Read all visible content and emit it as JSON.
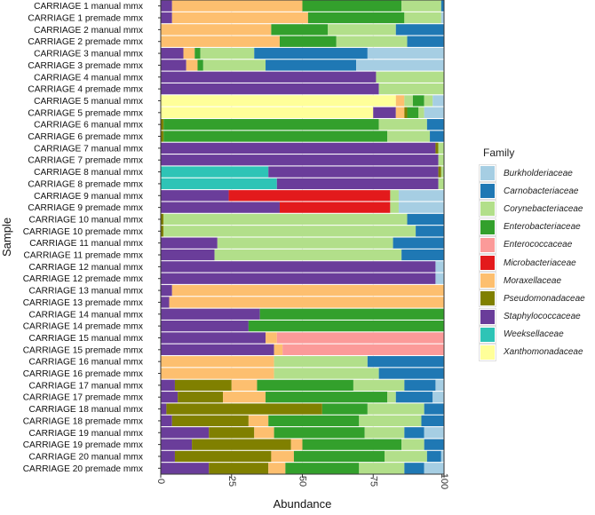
{
  "chart_data": {
    "type": "bar",
    "orientation": "horizontal",
    "stacked": true,
    "xlabel": "Abundance",
    "ylabel": "Sample",
    "xlim": [
      0,
      100
    ],
    "xticks": [
      "0",
      "25",
      "50",
      "75",
      "100"
    ],
    "legend_title": "Family",
    "legend_position": "right",
    "families": [
      "Burkholderiaceae",
      "Carnobacteriaceae",
      "Corynebacteriaceae",
      "Enterobacteriaceae",
      "Enterococcaceae",
      "Microbacteriaceae",
      "Moraxellaceae",
      "Pseudomonadaceae",
      "Staphylococcaceae",
      "Weeksellaceae",
      "Xanthomonadaceae"
    ],
    "colors": {
      "Burkholderiaceae": "#a6cee3",
      "Carnobacteriaceae": "#1f78b4",
      "Corynebacteriaceae": "#b2df8a",
      "Enterobacteriaceae": "#33a02c",
      "Enterococcaceae": "#fb9a99",
      "Microbacteriaceae": "#e31a1c",
      "Moraxellaceae": "#fdbf6f",
      "Pseudomonadaceae": "#808000",
      "Staphylococcaceae": "#6a3d9a",
      "Weeksellaceae": "#2ec4b6",
      "Xanthomonadaceae": "#ffff99"
    },
    "samples": [
      {
        "label": "CARRIAGE 1 manual mmx",
        "segments": [
          [
            "Staphylococcaceae",
            4
          ],
          [
            "Moraxellaceae",
            46
          ],
          [
            "Enterobacteriaceae",
            35
          ],
          [
            "Corynebacteriaceae",
            14
          ],
          [
            "Carnobacteriaceae",
            1
          ]
        ]
      },
      {
        "label": "CARRIAGE 1 premade mmx",
        "segments": [
          [
            "Staphylococcaceae",
            4
          ],
          [
            "Moraxellaceae",
            48
          ],
          [
            "Enterobacteriaceae",
            34
          ],
          [
            "Corynebacteriaceae",
            13
          ],
          [
            "Burkholderiaceae",
            1
          ]
        ]
      },
      {
        "label": "CARRIAGE 2 manual mmx",
        "segments": [
          [
            "Moraxellaceae",
            39
          ],
          [
            "Enterobacteriaceae",
            20
          ],
          [
            "Corynebacteriaceae",
            24
          ],
          [
            "Carnobacteriaceae",
            17
          ]
        ]
      },
      {
        "label": "CARRIAGE 2 premade mmx",
        "segments": [
          [
            "Moraxellaceae",
            42
          ],
          [
            "Enterobacteriaceae",
            20
          ],
          [
            "Corynebacteriaceae",
            25
          ],
          [
            "Carnobacteriaceae",
            13
          ]
        ]
      },
      {
        "label": "CARRIAGE 3 manual mmx",
        "segments": [
          [
            "Staphylococcaceae",
            8
          ],
          [
            "Moraxellaceae",
            4
          ],
          [
            "Enterobacteriaceae",
            2
          ],
          [
            "Corynebacteriaceae",
            19
          ],
          [
            "Carnobacteriaceae",
            40
          ],
          [
            "Burkholderiaceae",
            27
          ]
        ]
      },
      {
        "label": "CARRIAGE 3 premade mmx",
        "segments": [
          [
            "Staphylococcaceae",
            9
          ],
          [
            "Moraxellaceae",
            4
          ],
          [
            "Enterobacteriaceae",
            2
          ],
          [
            "Corynebacteriaceae",
            22
          ],
          [
            "Carnobacteriaceae",
            32
          ],
          [
            "Burkholderiaceae",
            31
          ]
        ]
      },
      {
        "label": "CARRIAGE 4 manual mmx",
        "segments": [
          [
            "Staphylococcaceae",
            76
          ],
          [
            "Corynebacteriaceae",
            24
          ]
        ]
      },
      {
        "label": "CARRIAGE 4 premade mmx",
        "segments": [
          [
            "Staphylococcaceae",
            77
          ],
          [
            "Corynebacteriaceae",
            23
          ]
        ]
      },
      {
        "label": "CARRIAGE 5 manual mmx",
        "segments": [
          [
            "Xanthomonadaceae",
            83
          ],
          [
            "Moraxellaceae",
            3
          ],
          [
            "Corynebacteriaceae",
            3
          ],
          [
            "Enterobacteriaceae",
            4
          ],
          [
            "Corynebacteriaceae",
            3
          ],
          [
            "Burkholderiaceae",
            4
          ]
        ]
      },
      {
        "label": "CARRIAGE 5 premade mmx",
        "segments": [
          [
            "Xanthomonadaceae",
            75
          ],
          [
            "Staphylococcaceae",
            8
          ],
          [
            "Moraxellaceae",
            3
          ],
          [
            "Pseudomonadaceae",
            1
          ],
          [
            "Enterobacteriaceae",
            4
          ],
          [
            "Corynebacteriaceae",
            2
          ],
          [
            "Burkholderiaceae",
            7
          ]
        ]
      },
      {
        "label": "CARRIAGE 6 manual mmx",
        "segments": [
          [
            "Pseudomonadaceae",
            1
          ],
          [
            "Enterobacteriaceae",
            76
          ],
          [
            "Corynebacteriaceae",
            17
          ],
          [
            "Carnobacteriaceae",
            6
          ]
        ]
      },
      {
        "label": "CARRIAGE 6 premade mmx",
        "segments": [
          [
            "Pseudomonadaceae",
            1
          ],
          [
            "Enterobacteriaceae",
            79
          ],
          [
            "Corynebacteriaceae",
            15
          ],
          [
            "Carnobacteriaceae",
            5
          ]
        ]
      },
      {
        "label": "CARRIAGE 7 manual mmx",
        "segments": [
          [
            "Staphylococcaceae",
            97
          ],
          [
            "Pseudomonadaceae",
            1
          ],
          [
            "Corynebacteriaceae",
            2
          ]
        ]
      },
      {
        "label": "CARRIAGE 7 premade mmx",
        "segments": [
          [
            "Staphylococcaceae",
            98
          ],
          [
            "Corynebacteriaceae",
            2
          ]
        ]
      },
      {
        "label": "CARRIAGE 8 manual mmx",
        "segments": [
          [
            "Weeksellaceae",
            38
          ],
          [
            "Staphylococcaceae",
            60
          ],
          [
            "Pseudomonadaceae",
            1
          ],
          [
            "Corynebacteriaceae",
            1
          ]
        ]
      },
      {
        "label": "CARRIAGE 8 premade mmx",
        "segments": [
          [
            "Weeksellaceae",
            41
          ],
          [
            "Staphylococcaceae",
            57
          ],
          [
            "Corynebacteriaceae",
            2
          ]
        ]
      },
      {
        "label": "CARRIAGE 9 manual mmx",
        "segments": [
          [
            "Staphylococcaceae",
            24
          ],
          [
            "Microbacteriaceae",
            57
          ],
          [
            "Corynebacteriaceae",
            3
          ],
          [
            "Burkholderiaceae",
            16
          ]
        ]
      },
      {
        "label": "CARRIAGE 9 premade mmx",
        "segments": [
          [
            "Staphylococcaceae",
            42
          ],
          [
            "Microbacteriaceae",
            39
          ],
          [
            "Corynebacteriaceae",
            3
          ],
          [
            "Burkholderiaceae",
            16
          ]
        ]
      },
      {
        "label": "CARRIAGE 10 manual mmx",
        "segments": [
          [
            "Pseudomonadaceae",
            1
          ],
          [
            "Corynebacteriaceae",
            86
          ],
          [
            "Carnobacteriaceae",
            13
          ]
        ]
      },
      {
        "label": "CARRIAGE 10 premade mmx",
        "segments": [
          [
            "Pseudomonadaceae",
            1
          ],
          [
            "Corynebacteriaceae",
            89
          ],
          [
            "Carnobacteriaceae",
            10
          ]
        ]
      },
      {
        "label": "CARRIAGE 11 manual mmx",
        "segments": [
          [
            "Staphylococcaceae",
            20
          ],
          [
            "Corynebacteriaceae",
            62
          ],
          [
            "Carnobacteriaceae",
            18
          ]
        ]
      },
      {
        "label": "CARRIAGE 11 premade mmx",
        "segments": [
          [
            "Staphylococcaceae",
            19
          ],
          [
            "Corynebacteriaceae",
            66
          ],
          [
            "Carnobacteriaceae",
            15
          ]
        ]
      },
      {
        "label": "CARRIAGE 12 manual mmx",
        "segments": [
          [
            "Staphylococcaceae",
            97
          ],
          [
            "Burkholderiaceae",
            3
          ]
        ]
      },
      {
        "label": "CARRIAGE 12 premade mmx",
        "segments": [
          [
            "Staphylococcaceae",
            97
          ],
          [
            "Burkholderiaceae",
            3
          ]
        ]
      },
      {
        "label": "CARRIAGE 13 manual mmx",
        "segments": [
          [
            "Staphylococcaceae",
            4
          ],
          [
            "Moraxellaceae",
            96
          ]
        ]
      },
      {
        "label": "CARRIAGE 13 premade mmx",
        "segments": [
          [
            "Staphylococcaceae",
            3
          ],
          [
            "Moraxellaceae",
            97
          ]
        ]
      },
      {
        "label": "CARRIAGE 14 manual mmx",
        "segments": [
          [
            "Staphylococcaceae",
            35
          ],
          [
            "Enterobacteriaceae",
            65
          ]
        ]
      },
      {
        "label": "CARRIAGE 14 premade mmx",
        "segments": [
          [
            "Staphylococcaceae",
            31
          ],
          [
            "Enterobacteriaceae",
            69
          ]
        ]
      },
      {
        "label": "CARRIAGE 15 manual mmx",
        "segments": [
          [
            "Staphylococcaceae",
            37
          ],
          [
            "Moraxellaceae",
            4
          ],
          [
            "Enterococcaceae",
            59
          ]
        ]
      },
      {
        "label": "CARRIAGE 15 premade mmx",
        "segments": [
          [
            "Staphylococcaceae",
            40
          ],
          [
            "Moraxellaceae",
            3
          ],
          [
            "Enterococcaceae",
            57
          ]
        ]
      },
      {
        "label": "CARRIAGE 16 manual mmx",
        "segments": [
          [
            "Moraxellaceae",
            40
          ],
          [
            "Corynebacteriaceae",
            33
          ],
          [
            "Carnobacteriaceae",
            27
          ]
        ]
      },
      {
        "label": "CARRIAGE 16 premade mmx",
        "segments": [
          [
            "Moraxellaceae",
            40
          ],
          [
            "Corynebacteriaceae",
            37
          ],
          [
            "Carnobacteriaceae",
            23
          ]
        ]
      },
      {
        "label": "CARRIAGE 17 manual mmx",
        "segments": [
          [
            "Staphylococcaceae",
            5
          ],
          [
            "Pseudomonadaceae",
            20
          ],
          [
            "Moraxellaceae",
            9
          ],
          [
            "Enterobacteriaceae",
            34
          ],
          [
            "Corynebacteriaceae",
            18
          ],
          [
            "Carnobacteriaceae",
            11
          ],
          [
            "Burkholderiaceae",
            3
          ]
        ]
      },
      {
        "label": "CARRIAGE 17 premade mmx",
        "segments": [
          [
            "Staphylococcaceae",
            6
          ],
          [
            "Pseudomonadaceae",
            16
          ],
          [
            "Moraxellaceae",
            15
          ],
          [
            "Enterobacteriaceae",
            43
          ],
          [
            "Corynebacteriaceae",
            3
          ],
          [
            "Carnobacteriaceae",
            13
          ],
          [
            "Burkholderiaceae",
            4
          ]
        ]
      },
      {
        "label": "CARRIAGE 18 manual mmx",
        "segments": [
          [
            "Staphylococcaceae",
            2
          ],
          [
            "Pseudomonadaceae",
            55
          ],
          [
            "Enterobacteriaceae",
            16
          ],
          [
            "Corynebacteriaceae",
            20
          ],
          [
            "Carnobacteriaceae",
            7
          ]
        ]
      },
      {
        "label": "CARRIAGE 18 premade mmx",
        "segments": [
          [
            "Staphylococcaceae",
            4
          ],
          [
            "Pseudomonadaceae",
            27
          ],
          [
            "Moraxellaceae",
            7
          ],
          [
            "Enterobacteriaceae",
            32
          ],
          [
            "Corynebacteriaceae",
            22
          ],
          [
            "Carnobacteriaceae",
            8
          ]
        ]
      },
      {
        "label": "CARRIAGE 19 manual mmx",
        "segments": [
          [
            "Staphylococcaceae",
            17
          ],
          [
            "Pseudomonadaceae",
            16
          ],
          [
            "Moraxellaceae",
            7
          ],
          [
            "Enterobacteriaceae",
            32
          ],
          [
            "Corynebacteriaceae",
            14
          ],
          [
            "Carnobacteriaceae",
            7
          ],
          [
            "Burkholderiaceae",
            7
          ]
        ]
      },
      {
        "label": "CARRIAGE 19 premade mmx",
        "segments": [
          [
            "Staphylococcaceae",
            11
          ],
          [
            "Pseudomonadaceae",
            35
          ],
          [
            "Moraxellaceae",
            4
          ],
          [
            "Enterobacteriaceae",
            35
          ],
          [
            "Corynebacteriaceae",
            8
          ],
          [
            "Carnobacteriaceae",
            7
          ]
        ]
      },
      {
        "label": "CARRIAGE 20 manual mmx",
        "segments": [
          [
            "Staphylococcaceae",
            5
          ],
          [
            "Pseudomonadaceae",
            34
          ],
          [
            "Moraxellaceae",
            8
          ],
          [
            "Enterobacteriaceae",
            32
          ],
          [
            "Corynebacteriaceae",
            15
          ],
          [
            "Carnobacteriaceae",
            5
          ],
          [
            "Burkholderiaceae",
            1
          ]
        ]
      },
      {
        "label": "CARRIAGE 20 premade mmx",
        "segments": [
          [
            "Staphylococcaceae",
            17
          ],
          [
            "Pseudomonadaceae",
            21
          ],
          [
            "Moraxellaceae",
            6
          ],
          [
            "Enterobacteriaceae",
            26
          ],
          [
            "Corynebacteriaceae",
            16
          ],
          [
            "Carnobacteriaceae",
            7
          ],
          [
            "Burkholderiaceae",
            7
          ]
        ]
      }
    ]
  }
}
